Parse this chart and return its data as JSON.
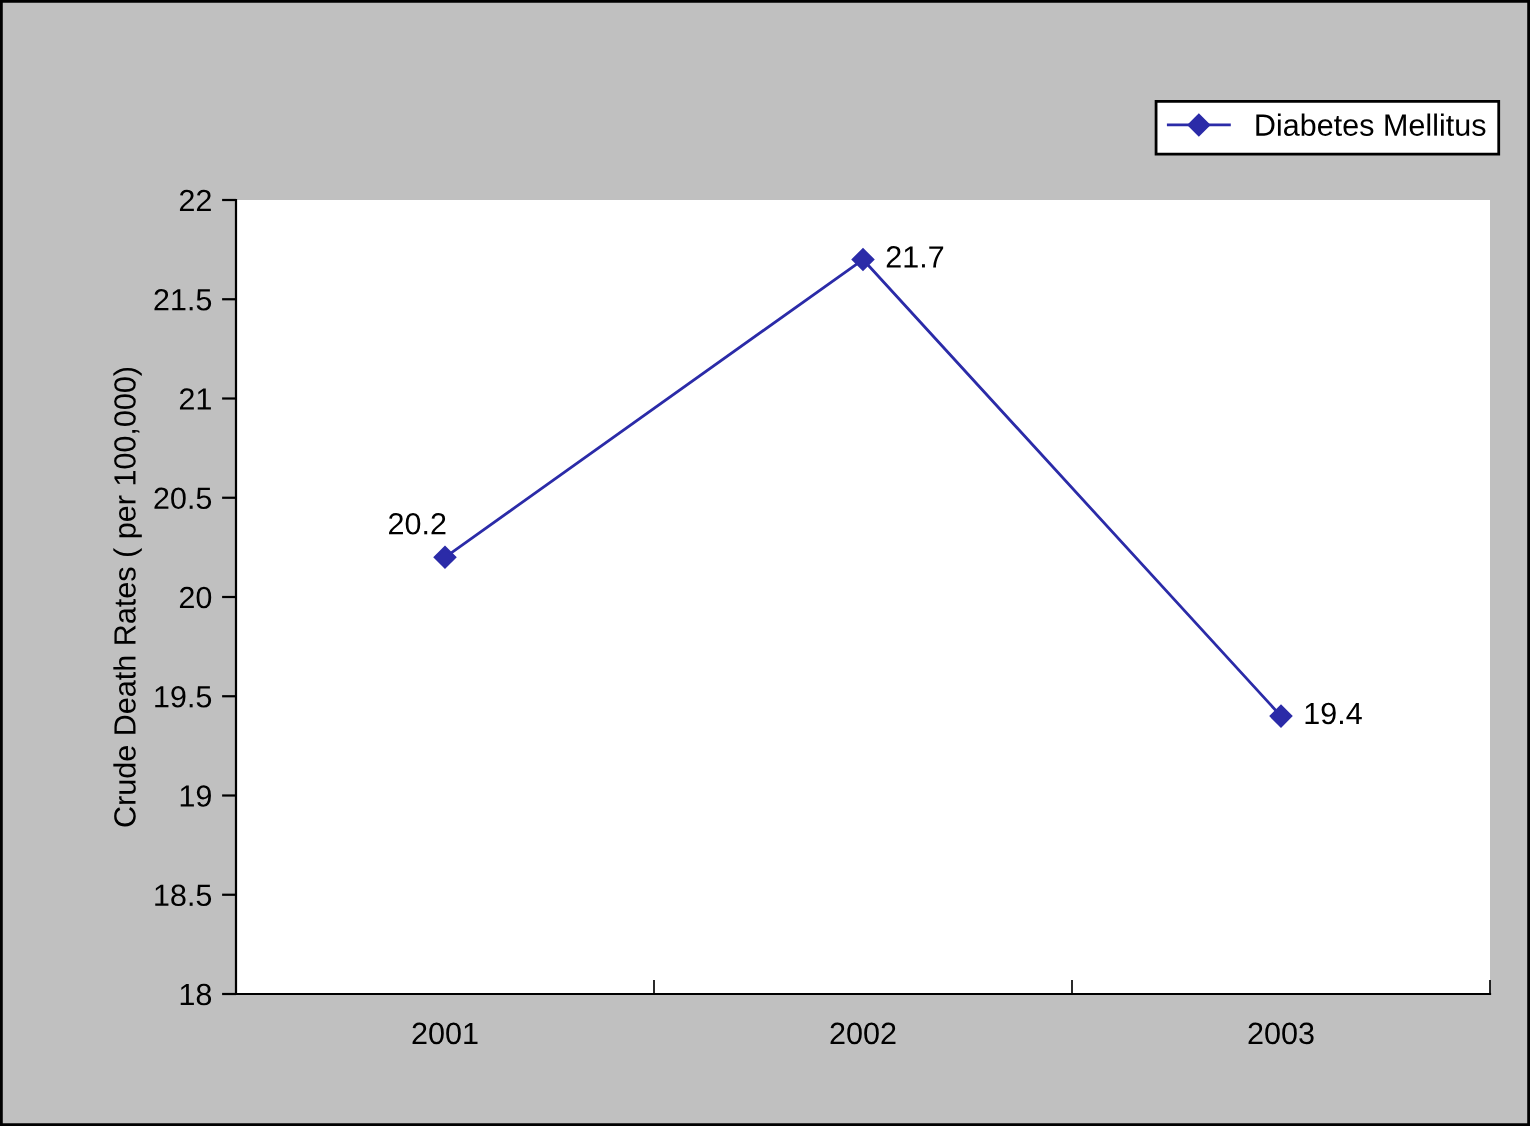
{
  "chart_data": {
    "type": "line",
    "ylabel": "Crude Death Rates ( per 100,000)",
    "categories": [
      "2001",
      "2002",
      "2003"
    ],
    "series": [
      {
        "name": "Diabetes Mellitus",
        "color": "#2b2ba8",
        "values": [
          20.2,
          21.7,
          19.4
        ]
      }
    ],
    "ylim": [
      18,
      22
    ],
    "yticks": [
      18,
      18.5,
      19,
      19.5,
      20,
      20.5,
      21,
      21.5,
      22
    ],
    "grid": false,
    "legend": "top right",
    "marker": "diamond",
    "line_style": "solid",
    "data_labels": true
  }
}
